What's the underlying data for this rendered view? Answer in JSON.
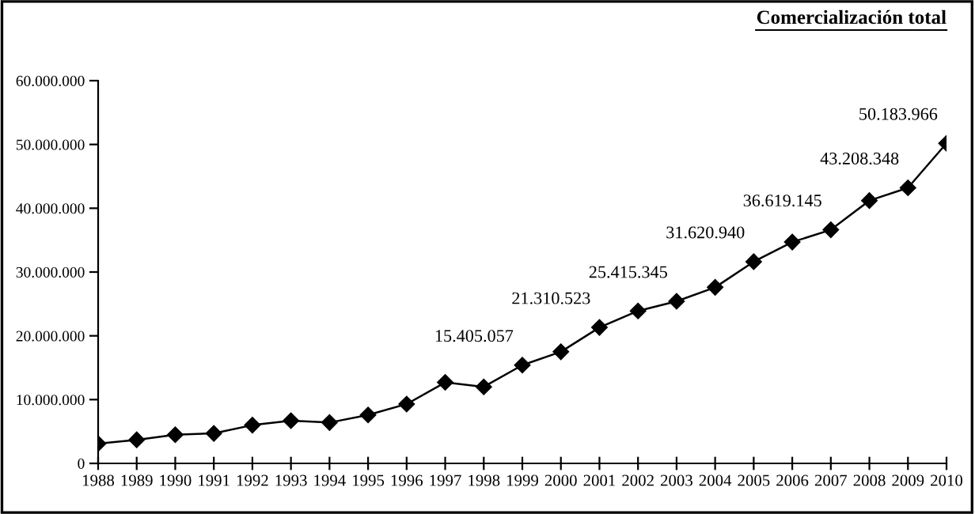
{
  "chart_data": {
    "type": "line",
    "title": "Comercialización total",
    "categories": [
      "1988",
      "1989",
      "1990",
      "1991",
      "1992",
      "1993",
      "1994",
      "1995",
      "1996",
      "1997",
      "1998",
      "1999",
      "2000",
      "2001",
      "2002",
      "2003",
      "2004",
      "2005",
      "2006",
      "2007",
      "2008",
      "2009",
      "2010"
    ],
    "values": [
      3100000,
      3700000,
      4500000,
      4700000,
      6000000,
      6700000,
      6400000,
      7600000,
      9300000,
      12700000,
      12000000,
      15405057,
      17500000,
      21310523,
      23900000,
      25415345,
      27600000,
      31620940,
      34700000,
      36619145,
      41200000,
      43208348,
      50183966
    ],
    "value_labels": [
      null,
      null,
      null,
      null,
      null,
      null,
      null,
      null,
      null,
      null,
      null,
      "15.405.057",
      null,
      "21.310.523",
      null,
      "25.415.345",
      null,
      "31.620.940",
      null,
      "36.619.145",
      null,
      "43.208.348",
      "50.183.966"
    ],
    "color": "#000000",
    "marker": "diamond",
    "line_style": "solid",
    "ylim": [
      0,
      60000000
    ],
    "yticks": [
      0,
      {
        "value": 10000000,
        "label": "10.000.000"
      },
      {
        "value": 20000000,
        "label": "20.000.000"
      },
      {
        "value": 30000000,
        "label": "30.000.000"
      },
      {
        "value": 40000000,
        "label": "40.000.000"
      },
      {
        "value": 50000000,
        "label": "50.000.000"
      },
      {
        "value": 60000000,
        "label": "60.000.000"
      }
    ],
    "grid": false,
    "legend": false
  }
}
